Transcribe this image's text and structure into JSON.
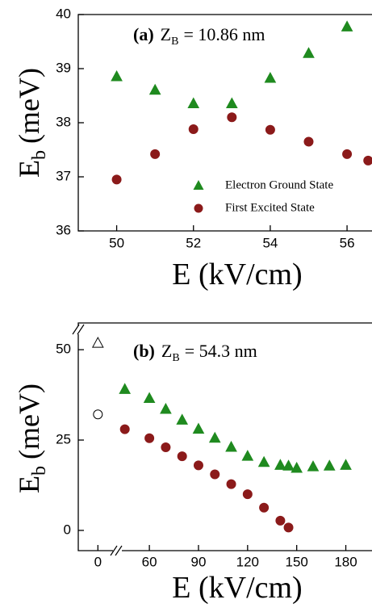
{
  "chart_data": [
    {
      "type": "scatter",
      "annotation": {
        "label": "(a)",
        "var": "Z",
        "sub": "B",
        "text": "= 10.86 nm"
      },
      "ylabel": {
        "var": "E",
        "sub": "b",
        "text": "(meV)"
      },
      "xlabel": "E (kV/cm)",
      "xlim": [
        49,
        56.65
      ],
      "ylim": [
        36,
        40
      ],
      "xticks": [
        50,
        52,
        54,
        56
      ],
      "yticks": [
        36,
        37,
        38,
        39,
        40
      ],
      "grid": false,
      "legend": "lower right",
      "series": [
        {
          "name": "Electron Ground State",
          "color": "#1f8a1f",
          "marker": "triangle",
          "filled": true,
          "x": [
            50,
            51,
            52,
            53,
            54,
            55,
            56
          ],
          "values": [
            38.85,
            38.6,
            38.35,
            38.35,
            38.82,
            39.28,
            39.77
          ]
        },
        {
          "name": "First Excited State",
          "color": "#8b1a1a",
          "marker": "circle",
          "filled": true,
          "x": [
            50,
            51,
            52,
            53,
            54,
            55,
            56,
            56.55
          ],
          "values": [
            36.95,
            37.42,
            37.88,
            38.1,
            37.87,
            37.65,
            37.42,
            37.3
          ]
        }
      ]
    },
    {
      "type": "scatter",
      "annotation": {
        "label": "(b)",
        "var": "Z",
        "sub": "B",
        "text": "= 54.3 nm"
      },
      "ylabel": {
        "var": "E",
        "sub": "b",
        "text": "(meV)"
      },
      "xlabel": "E (kV/cm)",
      "xlim": [
        -12,
        196
      ],
      "xbreak": [
        10.7,
        41.7
      ],
      "ylim": [
        -5.6,
        57.4
      ],
      "xticks": [
        0,
        60,
        90,
        120,
        150,
        180
      ],
      "yticks": [
        0,
        25,
        50
      ],
      "grid": false,
      "series": [
        {
          "color": "#000000",
          "marker": "triangle",
          "filled": false,
          "x": [
            0
          ],
          "values": [
            51.8
          ]
        },
        {
          "color": "#000000",
          "marker": "circle",
          "filled": false,
          "x": [
            0
          ],
          "values": [
            32.1
          ]
        },
        {
          "color": "#1f8a1f",
          "marker": "triangle",
          "filled": true,
          "x": [
            45,
            60,
            70,
            80,
            90,
            100,
            110,
            120,
            130,
            140,
            145,
            150,
            160,
            170,
            180
          ],
          "values": [
            39,
            36.5,
            33.5,
            30.5,
            28,
            25.5,
            23,
            20.5,
            18.8,
            18,
            17.8,
            17.2,
            17.6,
            17.8,
            18
          ]
        },
        {
          "color": "#8b1a1a",
          "marker": "circle",
          "filled": true,
          "x": [
            45,
            60,
            70,
            80,
            90,
            100,
            110,
            120,
            130,
            140,
            145
          ],
          "values": [
            28,
            25.5,
            23,
            20.5,
            18,
            15.5,
            12.8,
            10,
            6.3,
            2.7,
            0.8
          ]
        }
      ]
    }
  ]
}
